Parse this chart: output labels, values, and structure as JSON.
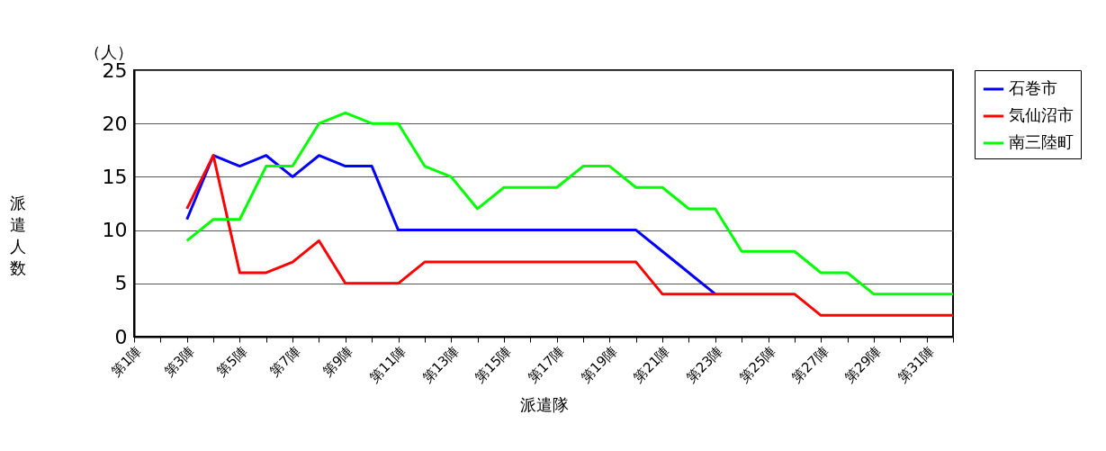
{
  "chart_data": {
    "type": "line",
    "xlabel": "派遣隊",
    "ylabel": "派遣人数",
    "annotations": [
      "（人）"
    ],
    "categories": [
      "第1陣",
      null,
      "第3陣",
      null,
      "第5陣",
      null,
      "第7陣",
      null,
      "第9陣",
      null,
      "第11陣",
      null,
      "第13陣",
      null,
      "第15陣",
      null,
      "第17陣",
      null,
      "第19陣",
      null,
      "第21陣",
      null,
      "第23陣",
      null,
      "第25陣",
      null,
      "第27陣",
      null,
      "第29陣",
      null,
      "第31陣",
      null
    ],
    "series": [
      {
        "name": "石巻市",
        "color": "#0000ff",
        "values": [
          null,
          null,
          11,
          17,
          16,
          17,
          15,
          17,
          16,
          16,
          10,
          10,
          10,
          10,
          10,
          10,
          10,
          10,
          10,
          10,
          8,
          6,
          4,
          null,
          null,
          null,
          null,
          null,
          null,
          null,
          null,
          null
        ]
      },
      {
        "name": "気仙沼市",
        "color": "#ff0000",
        "values": [
          null,
          null,
          12,
          17,
          6,
          6,
          7,
          9,
          5,
          5,
          5,
          7,
          7,
          7,
          7,
          7,
          7,
          7,
          7,
          7,
          4,
          4,
          4,
          4,
          4,
          4,
          2,
          2,
          2,
          2,
          2,
          2
        ]
      },
      {
        "name": "南三陸町",
        "color": "#00ff00",
        "values": [
          null,
          null,
          9,
          11,
          11,
          16,
          16,
          20,
          21,
          20,
          20,
          16,
          15,
          12,
          14,
          14,
          14,
          16,
          16,
          14,
          14,
          12,
          12,
          8,
          8,
          8,
          6,
          6,
          4,
          4,
          4,
          4
        ]
      }
    ],
    "ylim": [
      0,
      25
    ],
    "yticks": [
      0,
      5,
      10,
      15,
      20,
      25
    ],
    "grid": "y",
    "legend": "right",
    "marker": "none",
    "line_style": "solid"
  }
}
